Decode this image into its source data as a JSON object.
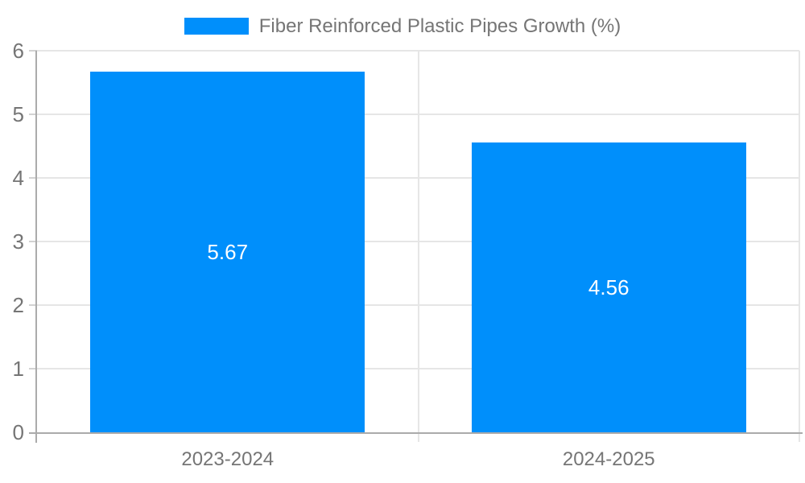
{
  "chart_data": {
    "type": "bar",
    "title": "",
    "categories": [
      "2023-2024",
      "2024-2025"
    ],
    "series": [
      {
        "name": "Fiber Reinforced Plastic Pipes Growth (%)",
        "values": [
          5.67,
          4.56
        ]
      }
    ],
    "value_labels": [
      "5.67",
      "4.56"
    ],
    "xlabel": "",
    "ylabel": "",
    "ylim": [
      0,
      6
    ],
    "yticks": [
      0,
      1,
      2,
      3,
      4,
      5,
      6
    ],
    "grid": true,
    "legend_position": "top-center",
    "colors": {
      "bar": "#008FFB",
      "grid": "#e6e6e6",
      "axis": "#ababab",
      "tick": "#d2d2d2",
      "axis_text": "#757575",
      "legend_text": "#757575",
      "value_text": "#ffffff",
      "background": "#ffffff"
    }
  }
}
